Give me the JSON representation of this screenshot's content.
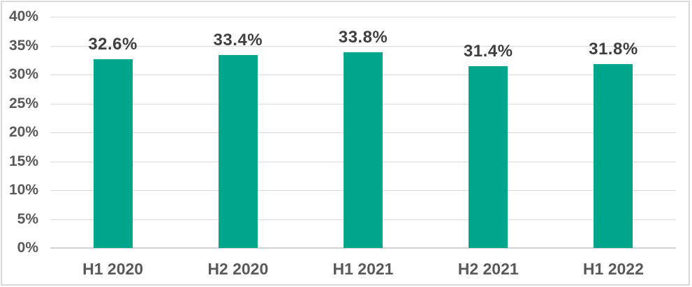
{
  "chart": {
    "background_color": "#FFFFFF",
    "border_color": "#D9D9D9",
    "bar_color": "#00A68C",
    "gridline_color": "#D9D9D9",
    "axis_line_color": "#CFCFCF",
    "axis_label_color": "#595959",
    "data_label_color": "#3F3F3F"
  },
  "chart_data": {
    "type": "bar",
    "categories": [
      "H1 2020",
      "H2 2020",
      "H1 2021",
      "H2 2021",
      "H1 2022"
    ],
    "values": [
      32.6,
      33.4,
      33.8,
      31.4,
      31.8
    ],
    "data_labels": [
      "32.6%",
      "33.4%",
      "33.8%",
      "31.4%",
      "31.8%"
    ],
    "title": "",
    "xlabel": "",
    "ylabel": "",
    "ylim": [
      0,
      40
    ],
    "ytick_step": 5,
    "ytick_labels": [
      "0%",
      "5%",
      "10%",
      "15%",
      "20%",
      "25%",
      "30%",
      "35%",
      "40%"
    ],
    "grid": true,
    "legend": false
  }
}
